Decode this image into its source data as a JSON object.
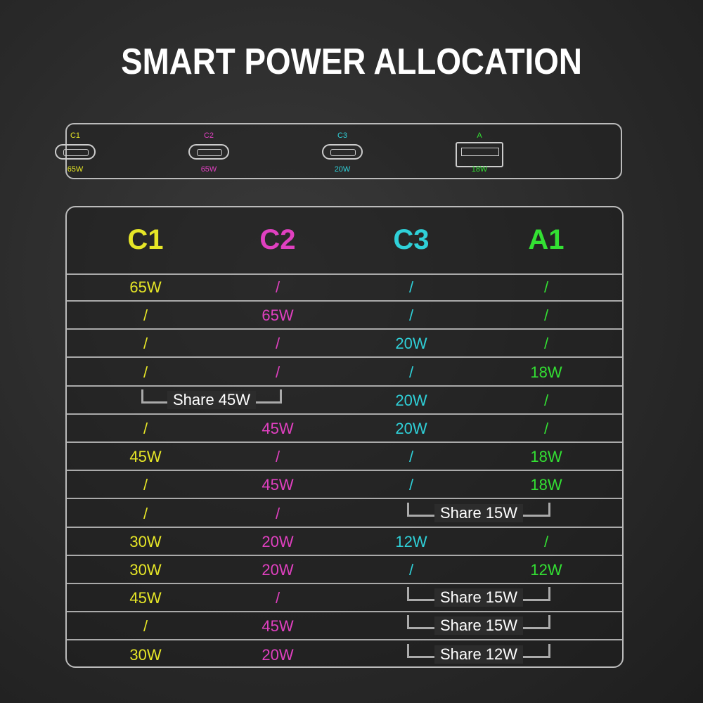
{
  "title": "SMART POWER ALLOCATION",
  "colors": {
    "C1": "#e6e627",
    "C2": "#e040c0",
    "C3": "#2fd0d8",
    "A1": "#33e033"
  },
  "ports": [
    {
      "label": "C1",
      "watt": "65W",
      "type": "usb-c-port-icon",
      "key": "C1"
    },
    {
      "label": "C2",
      "watt": "65W",
      "type": "usb-c-port-icon",
      "key": "C2"
    },
    {
      "label": "C3",
      "watt": "20W",
      "type": "usb-c-port-icon",
      "key": "C3"
    },
    {
      "label": "A",
      "watt": "18W",
      "type": "usb-a-port-icon",
      "key": "A1"
    }
  ],
  "table": {
    "headers": [
      "C1",
      "C2",
      "C3",
      "A1"
    ],
    "rows": [
      [
        {
          "t": "65W"
        },
        {
          "t": "/"
        },
        {
          "t": "/"
        },
        {
          "t": "/"
        }
      ],
      [
        {
          "t": "/"
        },
        {
          "t": "65W"
        },
        {
          "t": "/"
        },
        {
          "t": "/"
        }
      ],
      [
        {
          "t": "/"
        },
        {
          "t": "/"
        },
        {
          "t": "20W"
        },
        {
          "t": "/"
        }
      ],
      [
        {
          "t": "/"
        },
        {
          "t": "/"
        },
        {
          "t": "/"
        },
        {
          "t": "18W"
        }
      ],
      [
        {
          "share": "Share 45W",
          "cols": [
            0,
            1
          ]
        },
        {
          "t": "20W",
          "col": 2
        },
        {
          "t": "/",
          "col": 3
        }
      ],
      [
        {
          "t": "/"
        },
        {
          "t": "45W"
        },
        {
          "t": "20W"
        },
        {
          "t": "/"
        }
      ],
      [
        {
          "t": "45W"
        },
        {
          "t": "/"
        },
        {
          "t": "/"
        },
        {
          "t": "18W"
        }
      ],
      [
        {
          "t": "/"
        },
        {
          "t": "45W"
        },
        {
          "t": "/"
        },
        {
          "t": "18W"
        }
      ],
      [
        {
          "t": "/",
          "col": 0
        },
        {
          "t": "/",
          "col": 1
        },
        {
          "share": "Share 15W",
          "cols": [
            2,
            3
          ]
        }
      ],
      [
        {
          "t": "30W"
        },
        {
          "t": "20W"
        },
        {
          "t": "12W"
        },
        {
          "t": "/"
        }
      ],
      [
        {
          "t": "30W"
        },
        {
          "t": "20W"
        },
        {
          "t": "/"
        },
        {
          "t": "12W"
        }
      ],
      [
        {
          "t": "45W",
          "col": 0
        },
        {
          "t": "/",
          "col": 1
        },
        {
          "share": "Share 15W",
          "cols": [
            2,
            3
          ]
        }
      ],
      [
        {
          "t": "/",
          "col": 0
        },
        {
          "t": "45W",
          "col": 1
        },
        {
          "share": "Share 15W",
          "cols": [
            2,
            3
          ]
        }
      ],
      [
        {
          "t": "30W",
          "col": 0
        },
        {
          "t": "20W",
          "col": 1
        },
        {
          "share": "Share 12W",
          "cols": [
            2,
            3
          ]
        }
      ]
    ]
  }
}
